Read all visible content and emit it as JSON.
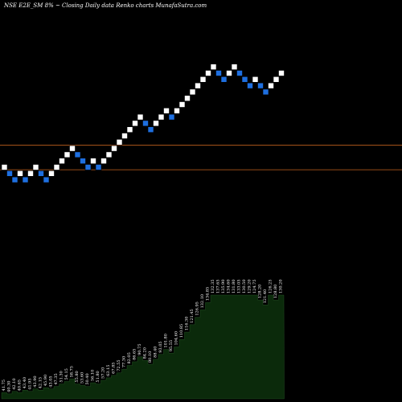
{
  "header": {
    "title": "NSE E2E_SM 8% ~  Closing Daily data  Renko  charts MunafaSutra.com"
  },
  "chart_data": {
    "type": "renko",
    "brick_colors": {
      "up": "#ffffff",
      "down": "#1e6fe0"
    },
    "reference_line_color": "#c8641e",
    "volume_fill": "#0b2a0b",
    "bricks": [
      {
        "d": "up",
        "v": 0
      },
      {
        "d": "down",
        "v": -1
      },
      {
        "d": "down",
        "v": -2
      },
      {
        "d": "up",
        "v": -1
      },
      {
        "d": "down",
        "v": -2
      },
      {
        "d": "up",
        "v": -1
      },
      {
        "d": "up",
        "v": 0
      },
      {
        "d": "down",
        "v": -1
      },
      {
        "d": "down",
        "v": -2
      },
      {
        "d": "up",
        "v": -1
      },
      {
        "d": "up",
        "v": 0
      },
      {
        "d": "up",
        "v": 1
      },
      {
        "d": "up",
        "v": 2
      },
      {
        "d": "up",
        "v": 3
      },
      {
        "d": "down",
        "v": 2
      },
      {
        "d": "down",
        "v": 1
      },
      {
        "d": "down",
        "v": 0
      },
      {
        "d": "up",
        "v": 1
      },
      {
        "d": "down",
        "v": 0
      },
      {
        "d": "up",
        "v": 1
      },
      {
        "d": "up",
        "v": 2
      },
      {
        "d": "up",
        "v": 3
      },
      {
        "d": "up",
        "v": 4
      },
      {
        "d": "up",
        "v": 5
      },
      {
        "d": "up",
        "v": 6
      },
      {
        "d": "up",
        "v": 7
      },
      {
        "d": "up",
        "v": 8
      },
      {
        "d": "down",
        "v": 7
      },
      {
        "d": "down",
        "v": 6
      },
      {
        "d": "up",
        "v": 7
      },
      {
        "d": "up",
        "v": 8
      },
      {
        "d": "up",
        "v": 9
      },
      {
        "d": "down",
        "v": 8
      },
      {
        "d": "up",
        "v": 9
      },
      {
        "d": "up",
        "v": 10
      },
      {
        "d": "up",
        "v": 11
      },
      {
        "d": "up",
        "v": 12
      },
      {
        "d": "up",
        "v": 13
      },
      {
        "d": "up",
        "v": 14
      },
      {
        "d": "up",
        "v": 15
      },
      {
        "d": "up",
        "v": 16
      },
      {
        "d": "down",
        "v": 15
      },
      {
        "d": "down",
        "v": 14
      },
      {
        "d": "up",
        "v": 15
      },
      {
        "d": "up",
        "v": 16
      },
      {
        "d": "down",
        "v": 15
      },
      {
        "d": "down",
        "v": 14
      },
      {
        "d": "down",
        "v": 13
      },
      {
        "d": "up",
        "v": 14
      },
      {
        "d": "down",
        "v": 13
      },
      {
        "d": "down",
        "v": 12
      },
      {
        "d": "up",
        "v": 13
      },
      {
        "d": "up",
        "v": 14
      },
      {
        "d": "up",
        "v": 15
      }
    ],
    "reference_lines": [
      3.5,
      -0.4
    ],
    "volume_levels": [
      0.05,
      0.04,
      0.06,
      0.05,
      0.07,
      0.06,
      0.08,
      0.07,
      0.09,
      0.08,
      0.1,
      0.12,
      0.14,
      0.16,
      0.12,
      0.11,
      0.1,
      0.13,
      0.12,
      0.15,
      0.17,
      0.19,
      0.21,
      0.24,
      0.27,
      0.3,
      0.34,
      0.31,
      0.28,
      0.32,
      0.36,
      0.4,
      0.37,
      0.42,
      0.48,
      0.54,
      0.6,
      0.66,
      0.72,
      0.78,
      0.84,
      0.84,
      0.84,
      0.84,
      0.84,
      0.84,
      0.84,
      0.84,
      0.84,
      0.8,
      0.76,
      0.84,
      0.8,
      0.84
    ],
    "value_labels": [
      "41.75",
      "40.30",
      "42.10",
      "40.65",
      "43.40",
      "41.95",
      "43.90",
      "42.15",
      "45.90",
      "43.05",
      "47.35",
      "51.30",
      "54.15",
      "58.75",
      "55.80",
      "53.60",
      "50.40",
      "56.10",
      "51.80",
      "57.20",
      "63.15",
      "67.85",
      "72.55",
      "77.30",
      "82.05",
      "86.65",
      "90.75",
      "84.20",
      "80.10",
      "88.40",
      "93.05",
      "101.80",
      "95.55",
      "104.60",
      "110.85",
      "116.30",
      "121.45",
      "126.95",
      "132.10",
      "134.85",
      "132.35",
      "137.65",
      "135.90",
      "134.60",
      "131.80",
      "133.05",
      "130.50",
      "129.20",
      "124.75",
      "128.20",
      "121.40",
      "126.25",
      "128.80",
      "130.20"
    ]
  }
}
